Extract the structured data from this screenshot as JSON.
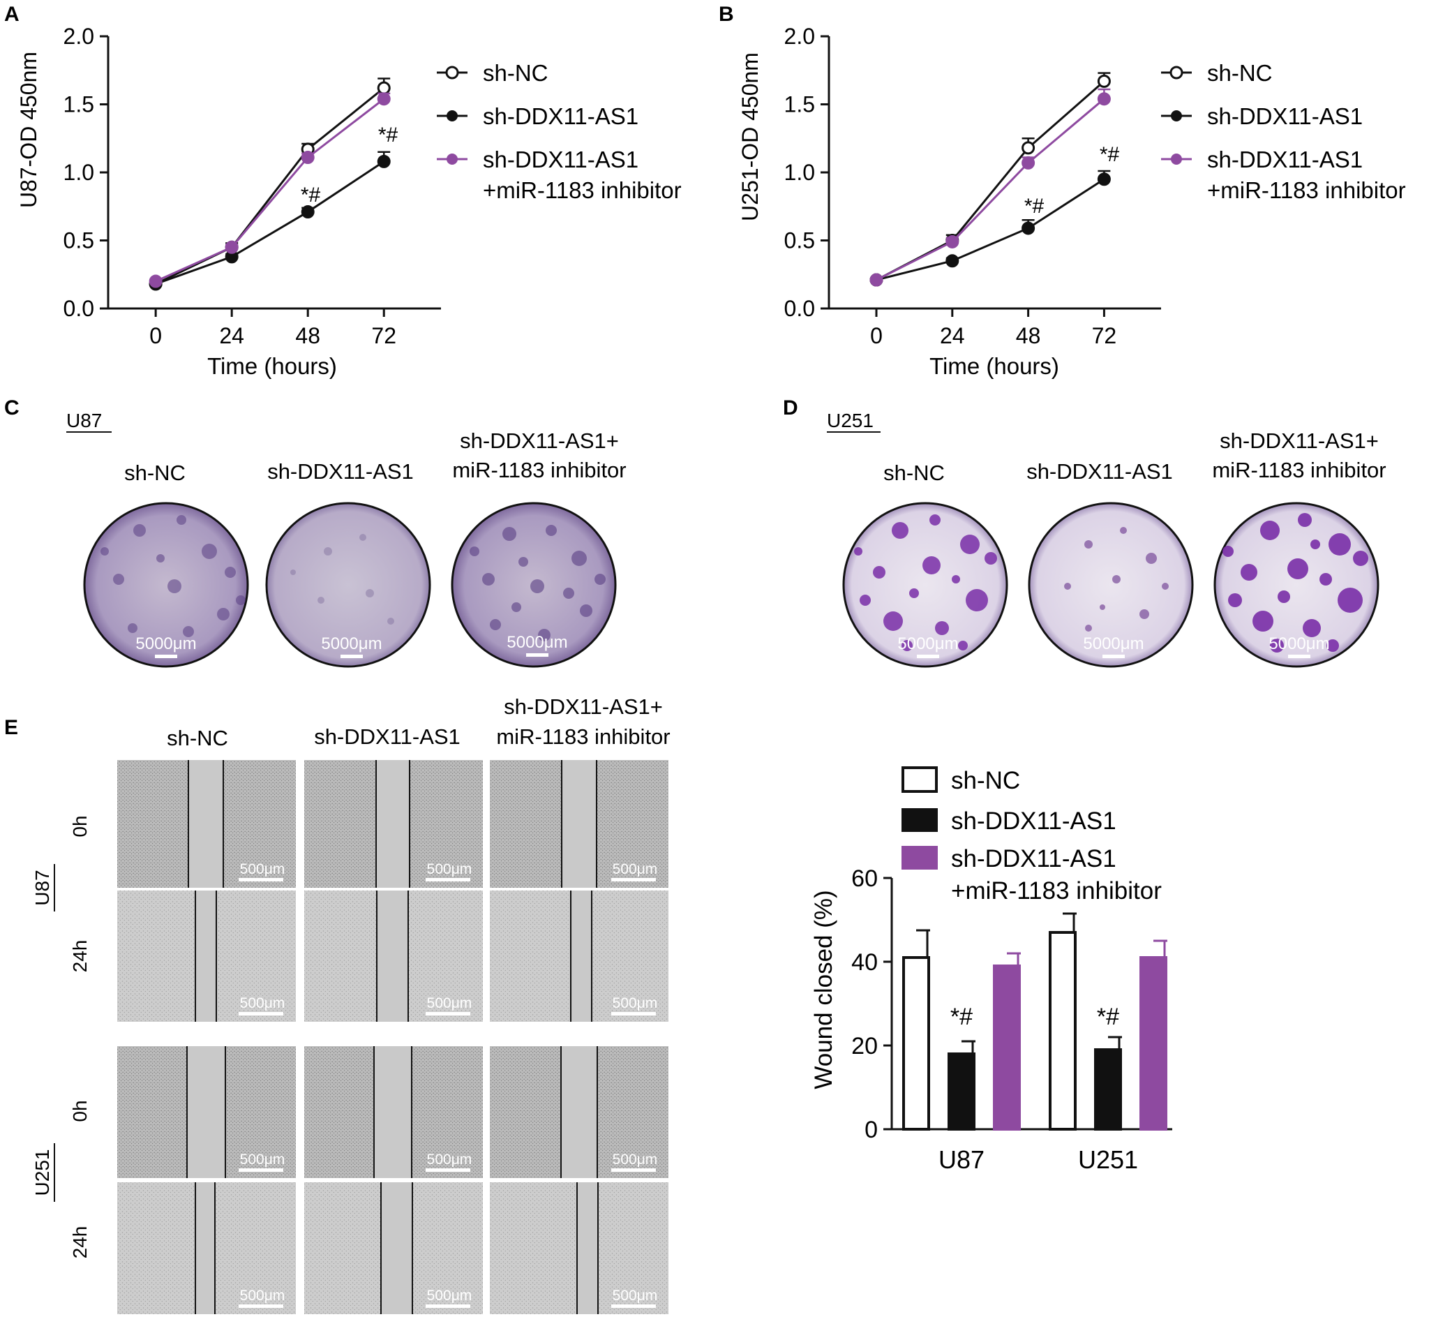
{
  "panels": {
    "A": {
      "letter": "A",
      "ylabel": "U87-OD 450nm",
      "xlabel": "Time (hours)",
      "sig_48": "*#",
      "sig_72": "*#"
    },
    "B": {
      "letter": "B",
      "ylabel": "U251-OD 450nm",
      "xlabel": "Time (hours)",
      "sig_48": "*#",
      "sig_72": "*#"
    },
    "C": {
      "letter": "C",
      "cell": "U87",
      "groups": [
        "sh-NC",
        "sh-DDX11-AS1",
        "sh-DDX11-AS1+",
        "miR-1183 inhibitor"
      ],
      "scale": "5000μm"
    },
    "D": {
      "letter": "D",
      "cell": "U251",
      "groups": [
        "sh-NC",
        "sh-DDX11-AS1",
        "sh-DDX11-AS1+",
        "miR-1183 inhibitor"
      ],
      "scale": "5000μm"
    },
    "E": {
      "letter": "E",
      "groups": [
        "sh-NC",
        "sh-DDX11-AS1",
        "sh-DDX11-AS1+",
        "miR-1183 inhibitor"
      ],
      "cells": [
        "U87",
        "U251"
      ],
      "times": [
        "0h",
        "24h"
      ],
      "scale": "500μm",
      "ylabel": "Wound closed (%)",
      "sig": "*#"
    }
  },
  "legend": {
    "sh_nc": "sh-NC",
    "sh_ddx": "sh-DDX11-AS1",
    "combo_line1": "sh-DDX11-AS1",
    "combo_line2": "+miR-1183 inhibitor"
  },
  "colors": {
    "purple": "#8e4aa0",
    "black": "#111111"
  },
  "chart_data": [
    {
      "id": "A",
      "type": "line",
      "title": "",
      "xlabel": "Time (hours)",
      "ylabel": "U87-OD 450nm",
      "x": [
        0,
        24,
        48,
        72
      ],
      "xlim": [
        -15,
        90
      ],
      "ylim": [
        0,
        2.0
      ],
      "yticks": [
        0.0,
        0.5,
        1.0,
        1.5,
        2.0
      ],
      "series": [
        {
          "name": "sh-NC",
          "values": [
            0.18,
            0.45,
            1.17,
            1.62
          ],
          "errors": [
            0.01,
            0.03,
            0.04,
            0.07
          ]
        },
        {
          "name": "sh-DDX11-AS1",
          "values": [
            0.18,
            0.38,
            0.71,
            1.08
          ],
          "errors": [
            0.01,
            0.02,
            0.03,
            0.07
          ]
        },
        {
          "name": "sh-DDX11-AS1+miR-1183 inhibitor",
          "values": [
            0.2,
            0.45,
            1.11,
            1.54
          ],
          "errors": [
            0.01,
            0.02,
            0.03,
            0.04
          ]
        }
      ]
    },
    {
      "id": "B",
      "type": "line",
      "title": "",
      "xlabel": "Time (hours)",
      "ylabel": "U251-OD 450nm",
      "x": [
        0,
        24,
        48,
        72
      ],
      "xlim": [
        -15,
        90
      ],
      "ylim": [
        0,
        2.0
      ],
      "yticks": [
        0.0,
        0.5,
        1.0,
        1.5,
        2.0
      ],
      "series": [
        {
          "name": "sh-NC",
          "values": [
            0.21,
            0.5,
            1.18,
            1.67
          ],
          "errors": [
            0.01,
            0.04,
            0.07,
            0.06
          ]
        },
        {
          "name": "sh-DDX11-AS1",
          "values": [
            0.21,
            0.35,
            0.59,
            0.95
          ],
          "errors": [
            0.01,
            0.02,
            0.06,
            0.06
          ]
        },
        {
          "name": "sh-DDX11-AS1+miR-1183 inhibitor",
          "values": [
            0.21,
            0.49,
            1.07,
            1.54
          ],
          "errors": [
            0.01,
            0.03,
            0.04,
            0.07
          ]
        }
      ]
    },
    {
      "id": "E-bar",
      "type": "bar",
      "title": "",
      "xlabel": "",
      "ylabel": "Wound closed (%)",
      "categories": [
        "U87",
        "U251"
      ],
      "ylim": [
        0,
        60
      ],
      "yticks": [
        0,
        20,
        40,
        60
      ],
      "series": [
        {
          "name": "sh-NC",
          "values": [
            41,
            47
          ],
          "errors": [
            6.5,
            4.5
          ]
        },
        {
          "name": "sh-DDX11-AS1",
          "values": [
            18,
            19
          ],
          "errors": [
            3,
            3
          ]
        },
        {
          "name": "sh-DDX11-AS1+miR-1183 inhibitor",
          "values": [
            39,
            41
          ],
          "errors": [
            3,
            4
          ]
        }
      ]
    }
  ]
}
